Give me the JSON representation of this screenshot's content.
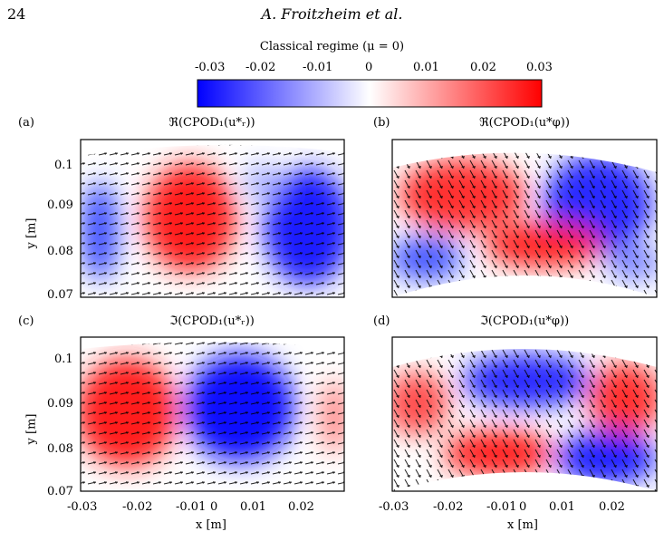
{
  "page": {
    "number": "24",
    "header": "A. Froitzheim et al."
  },
  "colorbar": {
    "title": "Classical regime (μ = 0)",
    "ticks": [
      "-0.03",
      "-0.02",
      "-0.01",
      "0",
      "0.01",
      "0.02",
      "0.03"
    ],
    "range": [
      -0.03,
      0.03
    ],
    "colors": {
      "low": "#0000ff",
      "mid": "#ffffff",
      "high": "#ff0000"
    }
  },
  "panels": [
    {
      "label": "(a)",
      "title": "ℜ(CPOD₁(u*ᵣ))"
    },
    {
      "label": "(b)",
      "title": "ℜ(CPOD₁(u*φ))"
    },
    {
      "label": "(c)",
      "title": "ℑ(CPOD₁(u*ᵣ))"
    },
    {
      "label": "(d)",
      "title": "ℑ(CPOD₁(u*φ))"
    }
  ],
  "axes": {
    "xlabel": "x  [m]",
    "ylabel": "y  [m]",
    "xticks": [
      "-0.03",
      "-0.02",
      "-0.01",
      "0",
      "0.01",
      "0.02"
    ],
    "yticks": [
      "0.1",
      "0.09",
      "0.08",
      "0.07"
    ]
  }
}
